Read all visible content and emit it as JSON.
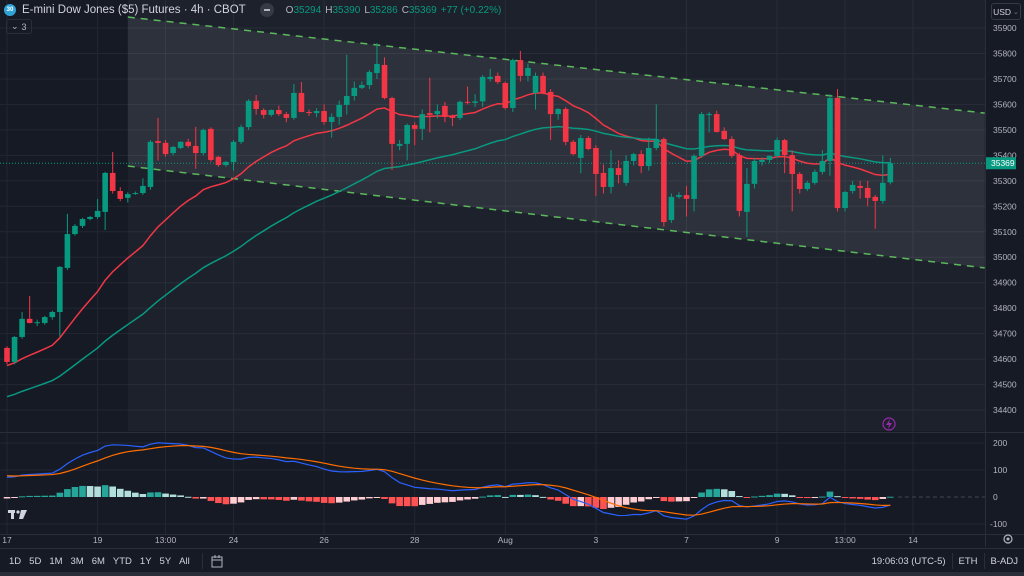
{
  "header": {
    "logo_text": "30",
    "title": "E-mini Dow Jones ($5) Futures · 4h · CBOT",
    "ohlc": {
      "o_label": "O",
      "o": "35294",
      "h_label": "H",
      "h": "35390",
      "l_label": "L",
      "l": "35286",
      "c_label": "C",
      "c": "35369",
      "change": "+77 (+0.22%)"
    },
    "indicators_collapsed_count": "3"
  },
  "currency_button": "USD",
  "last_price_tag": "35369",
  "toolbar": {
    "timeframes": [
      "1D",
      "5D",
      "1M",
      "3M",
      "6M",
      "YTD",
      "1Y",
      "5Y",
      "All"
    ],
    "clock": "19:06:03 (UTC-5)",
    "session": "ETH",
    "adjustment": "B-ADJ"
  },
  "colors": {
    "up": "#089981",
    "down": "#f23645",
    "ema_fast": "#f23645",
    "ema_slow": "#089981",
    "channel": "#5cb85c",
    "macd": "#2962ff",
    "signal": "#ff6d00",
    "hist_up_strong": "#26a69a",
    "hist_up_weak": "#b2dfdb",
    "hist_dn_strong": "#ff5252",
    "hist_dn_weak": "#ffcdd2",
    "price_tag": "#089981",
    "alert": "#9c27b0"
  },
  "chart_data": {
    "type": "candlestick",
    "symbol": "E-mini Dow Jones ($5) Futures",
    "interval": "4h",
    "price_axis": {
      "ticks": [
        35900,
        35800,
        35700,
        35600,
        35500,
        35400,
        35300,
        35200,
        35100,
        35000,
        34900,
        34800,
        34700,
        34600,
        34500,
        34400
      ]
    },
    "macd_axis": {
      "ticks": [
        200,
        100,
        0,
        -100
      ]
    },
    "time_labels": [
      {
        "bar": 0,
        "label": "17"
      },
      {
        "bar": 12,
        "label": "19"
      },
      {
        "bar": 21,
        "label": "13:00"
      },
      {
        "bar": 30,
        "label": "24"
      },
      {
        "bar": 42,
        "label": "26"
      },
      {
        "bar": 54,
        "label": "28"
      },
      {
        "bar": 66,
        "label": "Aug"
      },
      {
        "bar": 78,
        "label": "3"
      },
      {
        "bar": 90,
        "label": "7"
      },
      {
        "bar": 102,
        "label": "9"
      },
      {
        "bar": 111,
        "label": "13:00"
      },
      {
        "bar": 120,
        "label": "14"
      }
    ],
    "candles_ohlc": [
      [
        34644,
        34650,
        34580,
        34589
      ],
      [
        34589,
        34690,
        34580,
        34687
      ],
      [
        34687,
        34785,
        34680,
        34758
      ],
      [
        34758,
        34848,
        34740,
        34742
      ],
      [
        34742,
        34755,
        34730,
        34745
      ],
      [
        34742,
        34770,
        34735,
        34765
      ],
      [
        34765,
        34790,
        34755,
        34785
      ],
      [
        34785,
        34965,
        34688,
        34962
      ],
      [
        34958,
        35170,
        34950,
        35091
      ],
      [
        35091,
        35130,
        35085,
        35123
      ],
      [
        35123,
        35155,
        35115,
        35150
      ],
      [
        35150,
        35162,
        35145,
        35158
      ],
      [
        35158,
        35229,
        35150,
        35182
      ],
      [
        35178,
        35335,
        35107,
        35331
      ],
      [
        35331,
        35413,
        35250,
        35260
      ],
      [
        35260,
        35275,
        35220,
        35229
      ],
      [
        35233,
        35255,
        35215,
        35248
      ],
      [
        35250,
        35258,
        35245,
        35252
      ],
      [
        35252,
        35310,
        35245,
        35280
      ],
      [
        35276,
        35460,
        35265,
        35453
      ],
      [
        35456,
        35547,
        35380,
        35449
      ],
      [
        35449,
        35460,
        35395,
        35405
      ],
      [
        35409,
        35437,
        35400,
        35433
      ],
      [
        35429,
        35455,
        35425,
        35453
      ],
      [
        35453,
        35465,
        35430,
        35437
      ],
      [
        35437,
        35512,
        35347,
        35409
      ],
      [
        35409,
        35505,
        35400,
        35500
      ],
      [
        35504,
        35510,
        35375,
        35382
      ],
      [
        35394,
        35398,
        35355,
        35362
      ],
      [
        35362,
        35378,
        35355,
        35374
      ],
      [
        35374,
        35460,
        35340,
        35453
      ],
      [
        35453,
        35520,
        35445,
        35511
      ],
      [
        35511,
        35620,
        35500,
        35614
      ],
      [
        35614,
        35637,
        35560,
        35582
      ],
      [
        35578,
        35585,
        35545,
        35559
      ],
      [
        35559,
        35580,
        35552,
        35578
      ],
      [
        35578,
        35595,
        35555,
        35562
      ],
      [
        35562,
        35570,
        35530,
        35547
      ],
      [
        35547,
        35680,
        35540,
        35645
      ],
      [
        35645,
        35688,
        35570,
        35570
      ],
      [
        35570,
        35580,
        35555,
        35566
      ],
      [
        35566,
        35585,
        35550,
        35574
      ],
      [
        35574,
        35600,
        35520,
        35531
      ],
      [
        35531,
        35565,
        35470,
        35551
      ],
      [
        35551,
        35615,
        35520,
        35598
      ],
      [
        35598,
        35795,
        35560,
        35633
      ],
      [
        35633,
        35690,
        35615,
        35665
      ],
      [
        35665,
        35690,
        35660,
        35676
      ],
      [
        35676,
        35735,
        35660,
        35727
      ],
      [
        35723,
        35841,
        35700,
        35759
      ],
      [
        35755,
        35785,
        35620,
        35625
      ],
      [
        35625,
        35630,
        35343,
        35445
      ],
      [
        35437,
        35460,
        35420,
        35445
      ],
      [
        35445,
        35525,
        35380,
        35519
      ],
      [
        35519,
        35530,
        35440,
        35504
      ],
      [
        35504,
        35580,
        35460,
        35562
      ],
      [
        35566,
        35705,
        35490,
        35559
      ],
      [
        35562,
        35600,
        35545,
        35574
      ],
      [
        35594,
        35610,
        35530,
        35551
      ],
      [
        35555,
        35560,
        35515,
        35547
      ],
      [
        35547,
        35615,
        35540,
        35610
      ],
      [
        35610,
        35670,
        35600,
        35606
      ],
      [
        35606,
        35640,
        35590,
        35612
      ],
      [
        35612,
        35715,
        35590,
        35708
      ],
      [
        35700,
        35740,
        35690,
        35708
      ],
      [
        35712,
        35725,
        35680,
        35688
      ],
      [
        35684,
        35690,
        35580,
        35586
      ],
      [
        35586,
        35780,
        35570,
        35774
      ],
      [
        35774,
        35810,
        35690,
        35712
      ],
      [
        35712,
        35760,
        35690,
        35743
      ],
      [
        35645,
        35725,
        35580,
        35712
      ],
      [
        35712,
        35725,
        35640,
        35645
      ],
      [
        35649,
        35660,
        35460,
        35562
      ],
      [
        35562,
        35585,
        35540,
        35582
      ],
      [
        35582,
        35590,
        35440,
        35453
      ],
      [
        35453,
        35460,
        35400,
        35405
      ],
      [
        35390,
        35480,
        35330,
        35468
      ],
      [
        35468,
        35475,
        35420,
        35425
      ],
      [
        35429,
        35440,
        35240,
        35327
      ],
      [
        35331,
        35365,
        35250,
        35276
      ],
      [
        35276,
        35420,
        35250,
        35350
      ],
      [
        35350,
        35380,
        35290,
        35323
      ],
      [
        35292,
        35400,
        35280,
        35378
      ],
      [
        35378,
        35410,
        35360,
        35405
      ],
      [
        35405,
        35420,
        35330,
        35358
      ],
      [
        35358,
        35470,
        35340,
        35429
      ],
      [
        35429,
        35600,
        35420,
        35464
      ],
      [
        35464,
        35470,
        35120,
        35138
      ],
      [
        35146,
        35250,
        35135,
        35237
      ],
      [
        35237,
        35255,
        35230,
        35244
      ],
      [
        35244,
        35280,
        35160,
        35229
      ],
      [
        35229,
        35405,
        35180,
        35398
      ],
      [
        35398,
        35570,
        35390,
        35562
      ],
      [
        35559,
        35570,
        35490,
        35562
      ],
      [
        35562,
        35575,
        35490,
        35492
      ],
      [
        35496,
        35510,
        35460,
        35464
      ],
      [
        35464,
        35475,
        35390,
        35398
      ],
      [
        35401,
        35410,
        35160,
        35182
      ],
      [
        35178,
        35350,
        35080,
        35288
      ],
      [
        35288,
        35390,
        35270,
        35378
      ],
      [
        35374,
        35392,
        35360,
        35382
      ],
      [
        35382,
        35400,
        35370,
        35398
      ],
      [
        35398,
        35470,
        35390,
        35460
      ],
      [
        35460,
        35465,
        35330,
        35401
      ],
      [
        35401,
        35420,
        35180,
        35327
      ],
      [
        35327,
        35335,
        35250,
        35268
      ],
      [
        35268,
        35300,
        35260,
        35292
      ],
      [
        35292,
        35345,
        35285,
        35335
      ],
      [
        35335,
        35420,
        35325,
        35378
      ],
      [
        35378,
        35640,
        35320,
        35625
      ],
      [
        35625,
        35660,
        35180,
        35193
      ],
      [
        35193,
        35260,
        35180,
        35256
      ],
      [
        35260,
        35300,
        35250,
        35284
      ],
      [
        35280,
        35300,
        35230,
        35272
      ],
      [
        35272,
        35300,
        35200,
        35233
      ],
      [
        35237,
        35245,
        35112,
        35221
      ],
      [
        35221,
        35400,
        35210,
        35292
      ],
      [
        35294,
        35390,
        35286,
        35369
      ]
    ],
    "moving_averages": [
      {
        "name": "ema-fast",
        "period": 20,
        "seed": 34573
      },
      {
        "name": "ema-slow",
        "period": 50,
        "seed": 34447
      }
    ],
    "macd": {
      "fast": 12,
      "slow": 26,
      "signal": 9,
      "seed_fast": 34600,
      "seed_slow": 34520,
      "seed_signal": 80
    },
    "channel": {
      "upper": [
        {
          "bar": 16,
          "price": 35943
        },
        {
          "bar": 129.5,
          "price": 35566
        }
      ],
      "lower": [
        {
          "bar": 16,
          "price": 35358
        },
        {
          "bar": 129.5,
          "price": 34958
        }
      ]
    }
  }
}
